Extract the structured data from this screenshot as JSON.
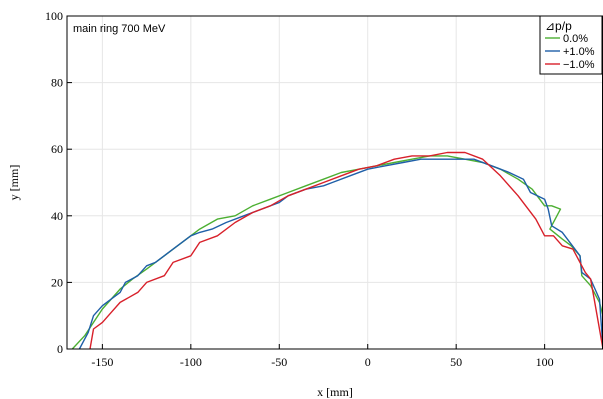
{
  "chart_data": {
    "type": "line",
    "title": "",
    "annotation": "main ring 700 MeV",
    "xlabel": "x [mm]",
    "ylabel": "y [mm]",
    "xlim": [
      -170,
      133
    ],
    "ylim": [
      0,
      100
    ],
    "xticks": [
      -150,
      -100,
      -50,
      0,
      50,
      100
    ],
    "yticks": [
      0,
      20,
      40,
      60,
      80,
      100
    ],
    "grid": true,
    "legend": {
      "title": "⊿p/p",
      "position": "top-right"
    },
    "series": [
      {
        "name": "0.0%",
        "color": "#4caf32",
        "points": [
          [
            -167,
            0
          ],
          [
            -160,
            4
          ],
          [
            -155,
            8
          ],
          [
            -150,
            12
          ],
          [
            -145,
            15
          ],
          [
            -140,
            18
          ],
          [
            -133,
            21
          ],
          [
            -125,
            24
          ],
          [
            -115,
            28
          ],
          [
            -105,
            32
          ],
          [
            -95,
            36
          ],
          [
            -85,
            39
          ],
          [
            -75,
            40
          ],
          [
            -65,
            43
          ],
          [
            -55,
            45
          ],
          [
            -45,
            47
          ],
          [
            -35,
            49
          ],
          [
            -25,
            51
          ],
          [
            -15,
            53
          ],
          [
            -5,
            54
          ],
          [
            5,
            55
          ],
          [
            15,
            56
          ],
          [
            25,
            57
          ],
          [
            35,
            58
          ],
          [
            45,
            58
          ],
          [
            55,
            57
          ],
          [
            65,
            56
          ],
          [
            75,
            54
          ],
          [
            85,
            51
          ],
          [
            93,
            48
          ],
          [
            100,
            43
          ],
          [
            104,
            43
          ],
          [
            109,
            42
          ],
          [
            103,
            36
          ],
          [
            110,
            33
          ],
          [
            115,
            31
          ],
          [
            120,
            28
          ],
          [
            121,
            22
          ],
          [
            126,
            19
          ],
          [
            131,
            14
          ],
          [
            133,
            10
          ]
        ]
      },
      {
        "name": "+1.0%",
        "color": "#1f5fa8",
        "points": [
          [
            -163,
            0
          ],
          [
            -158,
            5
          ],
          [
            -155,
            10
          ],
          [
            -150,
            13
          ],
          [
            -145,
            15
          ],
          [
            -140,
            17
          ],
          [
            -137,
            20
          ],
          [
            -130,
            22
          ],
          [
            -125,
            25
          ],
          [
            -120,
            26
          ],
          [
            -110,
            30
          ],
          [
            -100,
            34
          ],
          [
            -95,
            35
          ],
          [
            -88,
            36
          ],
          [
            -80,
            38
          ],
          [
            -70,
            40
          ],
          [
            -60,
            42
          ],
          [
            -50,
            44
          ],
          [
            -45,
            46
          ],
          [
            -35,
            48
          ],
          [
            -25,
            49
          ],
          [
            -20,
            50
          ],
          [
            -10,
            52
          ],
          [
            0,
            54
          ],
          [
            10,
            55
          ],
          [
            20,
            56
          ],
          [
            30,
            57
          ],
          [
            40,
            57
          ],
          [
            50,
            57
          ],
          [
            60,
            57
          ],
          [
            70,
            55
          ],
          [
            80,
            53
          ],
          [
            88,
            51
          ],
          [
            92,
            47
          ],
          [
            100,
            45
          ],
          [
            102,
            42
          ],
          [
            104,
            37
          ],
          [
            110,
            35
          ],
          [
            120,
            28
          ],
          [
            121,
            23
          ],
          [
            126,
            21
          ],
          [
            131,
            15
          ],
          [
            133,
            0
          ]
        ]
      },
      {
        "name": "−1.0%",
        "color": "#d8202a",
        "points": [
          [
            -157,
            0
          ],
          [
            -155,
            6
          ],
          [
            -150,
            8
          ],
          [
            -145,
            11
          ],
          [
            -140,
            14
          ],
          [
            -130,
            17
          ],
          [
            -125,
            20
          ],
          [
            -115,
            22
          ],
          [
            -110,
            26
          ],
          [
            -100,
            28
          ],
          [
            -95,
            32
          ],
          [
            -85,
            34
          ],
          [
            -75,
            38
          ],
          [
            -65,
            41
          ],
          [
            -55,
            43
          ],
          [
            -45,
            46
          ],
          [
            -35,
            48
          ],
          [
            -25,
            50
          ],
          [
            -15,
            52
          ],
          [
            -5,
            54
          ],
          [
            5,
            55
          ],
          [
            15,
            57
          ],
          [
            25,
            58
          ],
          [
            35,
            58
          ],
          [
            45,
            59
          ],
          [
            55,
            59
          ],
          [
            65,
            57
          ],
          [
            75,
            52
          ],
          [
            85,
            46
          ],
          [
            95,
            39
          ],
          [
            100,
            34
          ],
          [
            105,
            34
          ],
          [
            110,
            31
          ],
          [
            116,
            30
          ],
          [
            120,
            26
          ],
          [
            123,
            23
          ],
          [
            126,
            21
          ],
          [
            128,
            15
          ],
          [
            133,
            0
          ]
        ]
      }
    ]
  }
}
